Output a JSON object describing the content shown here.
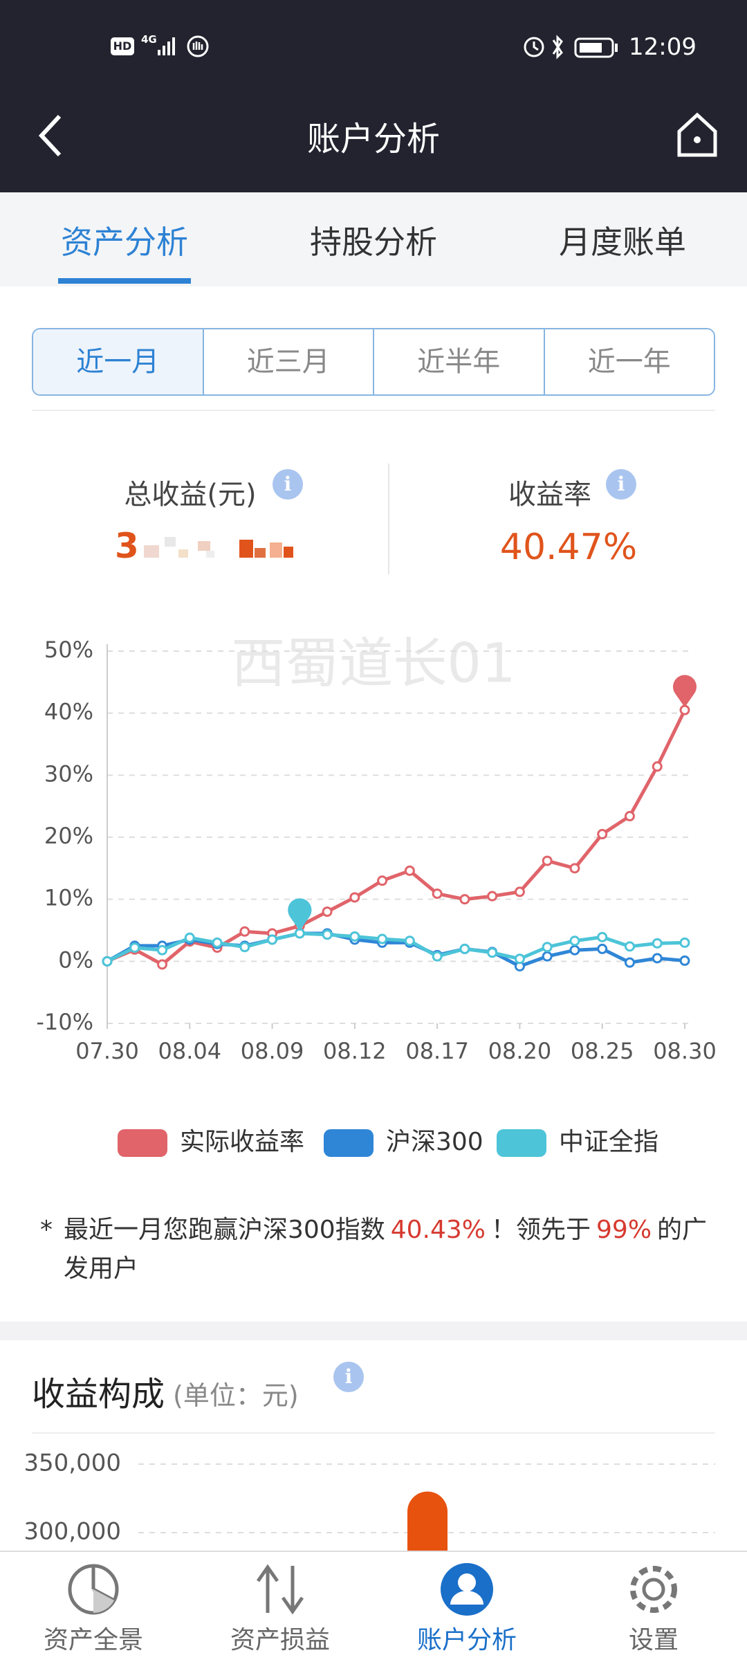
{
  "status": {
    "hd": "HD",
    "net": "4G",
    "time": "12:09"
  },
  "header": {
    "title": "账户分析"
  },
  "tabs": [
    "资产分析",
    "持股分析",
    "月度账单"
  ],
  "active_tab": 0,
  "periods": [
    "近一月",
    "近三月",
    "近半年",
    "近一年"
  ],
  "active_period": 0,
  "stats": {
    "total_label": "总收益(元)",
    "total_value": "3",
    "rate_label": "收益率",
    "rate_value": "40.47%"
  },
  "watermark": "西蜀道长01",
  "chart_data": [
    {
      "type": "line",
      "categories": [
        "07.30",
        null,
        null,
        "08.04",
        null,
        null,
        "08.09",
        null,
        null,
        "08.12",
        null,
        null,
        "08.17",
        null,
        null,
        "08.20",
        null,
        null,
        "08.25",
        null,
        null,
        "08.30"
      ],
      "series": [
        {
          "name": "实际收益率",
          "color": "#e0646a",
          "values": [
            0,
            1.9,
            -0.5,
            3.2,
            2.2,
            4.8,
            4.5,
            5.7,
            8,
            10.3,
            13,
            14.6,
            10.9,
            10,
            10.5,
            11.2,
            16.2,
            15,
            20.5,
            23.4,
            31.4,
            40.5
          ]
        },
        {
          "name": "沪深300",
          "color": "#2f86d6",
          "values": [
            0,
            2.5,
            2.5,
            3.5,
            2.8,
            2.5,
            3.5,
            4.5,
            4.5,
            3.5,
            3,
            3,
            1,
            2,
            1.5,
            -0.8,
            0.8,
            1.8,
            2,
            -0.2,
            0.5,
            0.1
          ]
        },
        {
          "name": "中证全指",
          "color": "#4dc4d8",
          "values": [
            0,
            2.2,
            1.8,
            3.8,
            3,
            2.3,
            3.5,
            4.5,
            4.3,
            4,
            3.6,
            3.3,
            0.8,
            2,
            1.4,
            0.4,
            2.3,
            3.3,
            3.9,
            2.4,
            2.9,
            3
          ]
        }
      ],
      "ylim": [
        -10,
        50
      ],
      "yticks": [
        {
          "value": -10,
          "label": "-10%"
        },
        {
          "value": 0,
          "label": "0%"
        },
        {
          "value": 10,
          "label": "10%"
        },
        {
          "value": 20,
          "label": "20%"
        },
        {
          "value": 30,
          "label": "30%"
        },
        {
          "value": 40,
          "label": "40%"
        },
        {
          "value": 50,
          "label": "50%"
        }
      ],
      "grid": true
    },
    {
      "type": "bar",
      "categories": [
        null
      ],
      "values": [
        330000
      ],
      "color": "#e8520f",
      "ylim": [
        300000,
        350000
      ],
      "yticks": [
        {
          "value": 300000,
          "label": "300,000"
        },
        {
          "value": 350000,
          "label": "350,000"
        }
      ],
      "grid": true
    }
  ],
  "note": [
    "*",
    "最近一月您跑赢沪深300指数",
    "40.43%",
    "！领先于",
    "99%",
    "的广发用户"
  ],
  "section": {
    "title": "收益构成",
    "unit": "(单位：元)"
  },
  "nav": [
    "资产全景",
    "资产损益",
    "账户分析",
    "设置"
  ],
  "active_nav": 2
}
